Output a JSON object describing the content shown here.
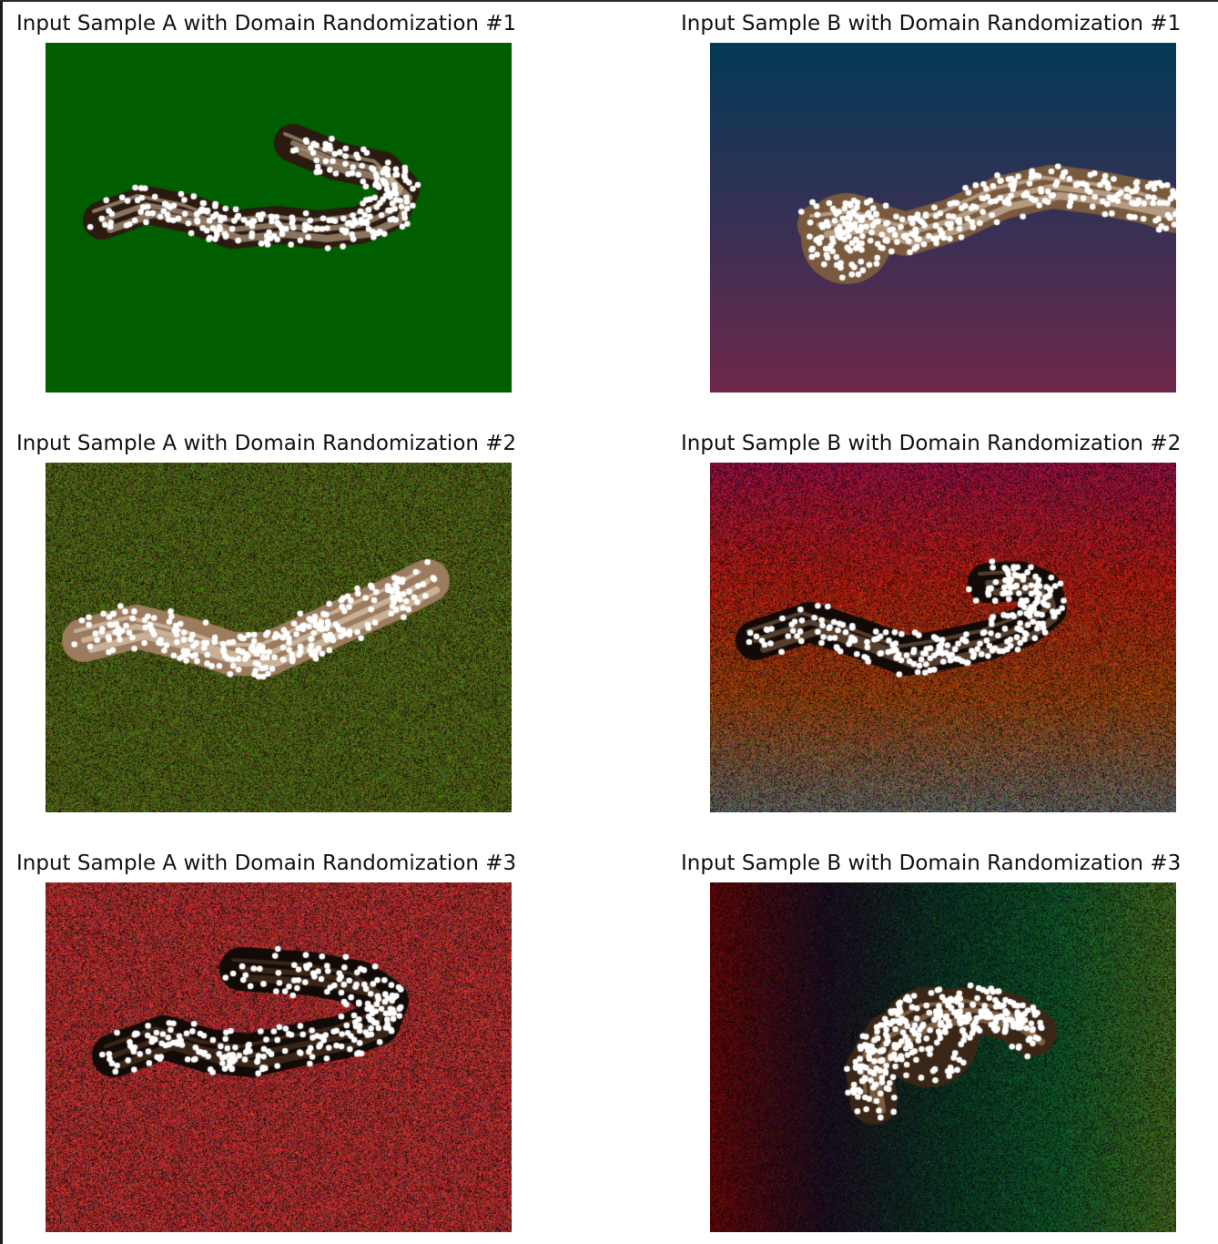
{
  "figure": {
    "panels": [
      {
        "title": "Input Sample A with Domain Randomization #1",
        "background": {
          "style": "solid",
          "colors": [
            "#005e00"
          ],
          "noise": 0
        },
        "specimen": {
          "body": "#2a1a10",
          "highlight": "#d9c0a0"
        }
      },
      {
        "title": "Input Sample B with Domain Randomization #1",
        "background": {
          "style": "vertical-gradient",
          "colors": [
            "#033a56",
            "#363055",
            "#6e284a"
          ],
          "noise": 0
        },
        "specimen": {
          "body": "#7a5a3e",
          "highlight": "#e6d2b8"
        }
      },
      {
        "title": "Input Sample A with Domain Randomization #2",
        "background": {
          "style": "solid",
          "colors": [
            "#4a5a14"
          ],
          "noise": 0.9
        },
        "specimen": {
          "body": "#9c7c5e",
          "highlight": "#ecdcc6"
        }
      },
      {
        "title": "Input Sample B with Domain Randomization #2",
        "background": {
          "style": "vertical-gradient",
          "colors": [
            "#8a0e3a",
            "#a0190f",
            "#8a3a0a",
            "#5a5a55"
          ],
          "noise": 0.9
        },
        "specimen": {
          "body": "#120a06",
          "highlight": "#8a6a4e"
        }
      },
      {
        "title": "Input Sample A with Domain Randomization #3",
        "background": {
          "style": "solid",
          "colors": [
            "#a42a2a"
          ],
          "noise": 1
        },
        "specimen": {
          "body": "#120a06",
          "highlight": "#5a3e28"
        }
      },
      {
        "title": "Input Sample B with Domain Randomization #3",
        "background": {
          "style": "horizontal-gradient",
          "colors": [
            "#5a0606",
            "#1a0c1c",
            "#0a2e1e",
            "#0e4a22",
            "#3a5a1a"
          ],
          "noise": 0.8
        },
        "specimen": {
          "body": "#3a2616",
          "highlight": "#b08a66"
        }
      }
    ]
  }
}
